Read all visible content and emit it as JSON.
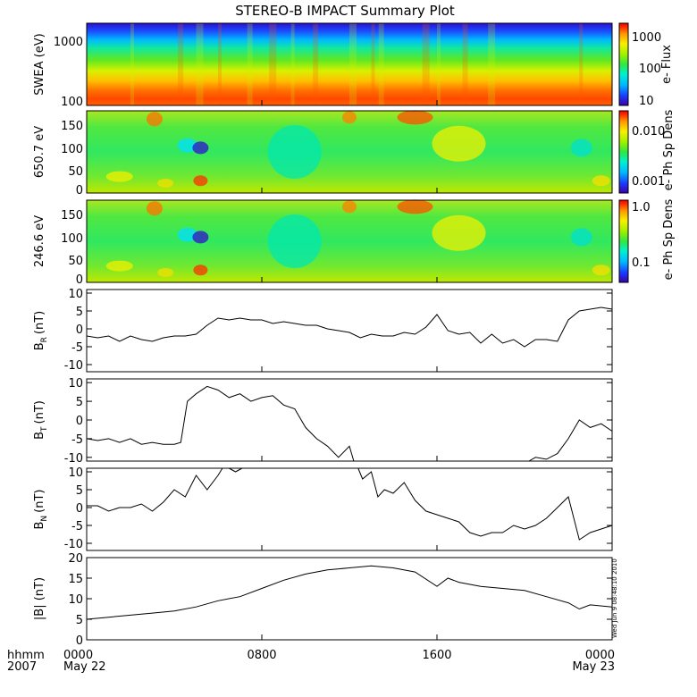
{
  "title": "STEREO-B IMPACT Summary Plot",
  "time_axis": {
    "row_label_1": "hhmm",
    "row_label_2": "2007",
    "ticks": [
      {
        "hour": 0,
        "label": "0000",
        "date": "May 22"
      },
      {
        "hour": 8,
        "label": "0800",
        "date": ""
      },
      {
        "hour": 16,
        "label": "1600",
        "date": ""
      },
      {
        "hour": 24,
        "label": "0000",
        "date": "May 23"
      }
    ]
  },
  "timestamp": "Wed Jun  9 08:48:10 2010",
  "colors": {
    "colormap": [
      "#3a00a8",
      "#1a3cff",
      "#00b8ff",
      "#00f0d0",
      "#30e840",
      "#a0f000",
      "#f8f000",
      "#ff9800",
      "#ff3000",
      "#e80000"
    ],
    "line": "#000000"
  },
  "chart_data": [
    {
      "type": "heatmap",
      "id": "swea",
      "ylabel": "SWEA (eV)",
      "yticks": [
        "1000",
        "100"
      ],
      "yscale": "log",
      "colorbar_label": "e- Flux",
      "colorbar_ticks": [
        "1000",
        "100",
        "10"
      ]
    },
    {
      "type": "heatmap",
      "id": "pad650",
      "ylabel": "650.7 eV",
      "yticks": [
        "150",
        "100",
        "50",
        "0"
      ],
      "ylim": [
        -10,
        180
      ],
      "colorbar_label": "e- Ph Sp Dens",
      "colorbar_ticks": [
        "0.010",
        "0.001"
      ]
    },
    {
      "type": "heatmap",
      "id": "pad246",
      "ylabel": "246.6 eV",
      "yticks": [
        "150",
        "100",
        "50",
        "0"
      ],
      "ylim": [
        -10,
        180
      ],
      "colorbar_label": "e- Ph Sp Dens",
      "colorbar_ticks": [
        "1.0",
        "0.1"
      ]
    },
    {
      "type": "line",
      "id": "br",
      "ylabel": "B",
      "ylabel_sub": "R",
      "ylabel_unit": "(nT)",
      "ylim": [
        -12,
        11
      ],
      "yticks": [
        "10",
        "5",
        "0",
        "-5",
        "-10"
      ],
      "x": [
        0,
        0.5,
        1,
        1.5,
        2,
        2.5,
        3,
        3.5,
        4,
        4.5,
        5,
        5.5,
        6,
        6.5,
        7,
        7.5,
        8,
        8.5,
        9,
        9.5,
        10,
        10.5,
        11,
        11.5,
        12,
        12.5,
        13,
        13.5,
        14,
        14.5,
        15,
        15.5,
        16,
        16.5,
        17,
        17.5,
        18,
        18.5,
        19,
        19.5,
        20,
        20.5,
        21,
        21.5,
        22,
        22.5,
        23,
        23.5,
        24
      ],
      "y": [
        -2,
        -2.5,
        -2,
        -3.5,
        -2,
        -3,
        -3.5,
        -2.5,
        -2,
        -2,
        -1.5,
        1,
        3,
        2.5,
        3,
        2.5,
        2.5,
        1.5,
        2,
        1.5,
        1,
        1,
        0,
        -0.5,
        -1,
        -2.5,
        -1.5,
        -2,
        -2,
        -1,
        -1.5,
        0.5,
        4,
        -0.5,
        -1.5,
        -1,
        -4,
        -1.5,
        -4,
        -3,
        -5,
        -3,
        -3,
        -3.5,
        2.5,
        5,
        5.5,
        6,
        5.5
      ]
    },
    {
      "type": "line",
      "id": "bt",
      "ylabel": "B",
      "ylabel_sub": "T",
      "ylabel_unit": "(nT)",
      "ylim": [
        -11,
        11
      ],
      "yticks": [
        "10",
        "5",
        "0",
        "-5",
        "-10"
      ],
      "segments": [
        {
          "x": [
            0,
            0.5,
            1,
            1.5,
            2,
            2.5,
            3,
            3.5,
            4,
            4.3,
            4.6,
            5,
            5.5,
            6,
            6.5,
            7,
            7.5,
            8,
            8.5,
            9,
            9.5,
            10,
            10.5,
            11,
            11.5,
            12,
            12.2
          ],
          "y": [
            -5,
            -5.5,
            -5,
            -6,
            -5,
            -6.5,
            -6,
            -6.5,
            -6.5,
            -6,
            5,
            7,
            9,
            8,
            6,
            7,
            5,
            6,
            6.5,
            4,
            3,
            -2,
            -5,
            -7,
            -10,
            -7,
            -11
          ]
        },
        {
          "x": [
            20.2,
            20.5,
            21,
            21.5,
            22,
            22.5,
            23,
            23.5,
            24
          ],
          "y": [
            -11,
            -10,
            -10.5,
            -9,
            -5,
            0,
            -2,
            -1,
            -3
          ]
        }
      ]
    },
    {
      "type": "line",
      "id": "bn",
      "ylabel": "B",
      "ylabel_sub": "N",
      "ylabel_unit": "(nT)",
      "ylim": [
        -12,
        11
      ],
      "yticks": [
        "10",
        "5",
        "0",
        "-5",
        "-10"
      ],
      "segments": [
        {
          "x": [
            0,
            0.5,
            1,
            1.5,
            2,
            2.5,
            3,
            3.5,
            4,
            4.5,
            5,
            5.5,
            6,
            6.2
          ],
          "y": [
            0.5,
            0.5,
            -1,
            0,
            0,
            1,
            -1,
            1.5,
            5,
            3,
            9,
            5,
            9,
            11
          ]
        },
        {
          "x": [
            6.5,
            6.8,
            7.1
          ],
          "y": [
            11,
            10,
            11
          ]
        },
        {
          "x": [
            12.4,
            12.6,
            13,
            13.3,
            13.6,
            14,
            14.5,
            15,
            15.5,
            16,
            16.5,
            17,
            17.5,
            18,
            18.5,
            19,
            19.5,
            20,
            20.5,
            21,
            21.5,
            22,
            22.5,
            23,
            23.5,
            24
          ],
          "y": [
            11,
            8,
            10,
            3,
            5,
            4,
            7,
            2,
            -1,
            -2,
            -3,
            -4,
            -7,
            -8,
            -7,
            -7,
            -5,
            -6,
            -5,
            -3,
            0,
            3,
            -9,
            -7,
            -6,
            -5
          ]
        }
      ]
    },
    {
      "type": "line",
      "id": "btot",
      "ylabel": "|B| (nT)",
      "ylim": [
        0,
        20
      ],
      "yticks": [
        "20",
        "15",
        "10",
        "5",
        "0"
      ],
      "x": [
        0,
        1,
        2,
        3,
        4,
        5,
        6,
        7,
        8,
        9,
        10,
        11,
        12,
        13,
        14,
        15,
        16,
        16.5,
        17,
        18,
        19,
        20,
        21,
        22,
        22.5,
        23,
        24
      ],
      "y": [
        5,
        5.5,
        6,
        6.5,
        7,
        8,
        9.5,
        10.5,
        12.5,
        14.5,
        16,
        17,
        17.5,
        18,
        17.5,
        16.5,
        13,
        15,
        14,
        13,
        12.5,
        12,
        10.5,
        9,
        7.5,
        8.5,
        8
      ]
    }
  ]
}
